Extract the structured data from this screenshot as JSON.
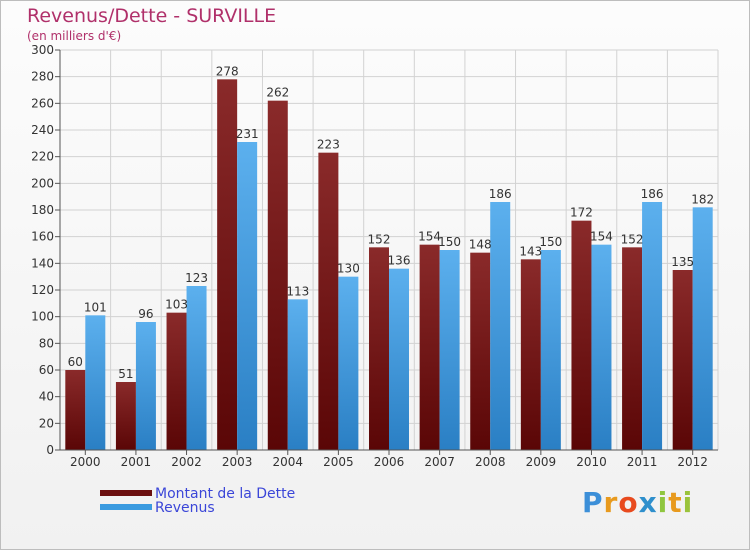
{
  "header": {
    "title": "Revenus/Dette - SURVILLE",
    "subtitle": "(en milliers d'€)"
  },
  "chart_data": {
    "type": "bar",
    "title": "Revenus/Dette - SURVILLE",
    "ylabel": "(en milliers d'€)",
    "xlabel": "",
    "ylim": [
      0,
      300
    ],
    "ytick_step": 20,
    "grid": true,
    "categories": [
      "2000",
      "2001",
      "2002",
      "2003",
      "2004",
      "2005",
      "2006",
      "2007",
      "2008",
      "2009",
      "2010",
      "2011",
      "2012"
    ],
    "series": [
      {
        "name": "Montant de la Dette",
        "color": "#6b1010",
        "values": [
          60,
          51,
          103,
          278,
          262,
          223,
          152,
          154,
          148,
          143,
          172,
          152,
          135
        ]
      },
      {
        "name": "Revenus",
        "color": "#3b9be0",
        "values": [
          101,
          96,
          123,
          231,
          113,
          130,
          136,
          150,
          186,
          150,
          154,
          186,
          182
        ]
      }
    ],
    "legend_position": "bottom-left"
  },
  "legend": {
    "items": [
      {
        "label": "Montant de la Dette",
        "color": "#6b1010"
      },
      {
        "label": "Revenus",
        "color": "#3b9be0"
      }
    ]
  },
  "logo": {
    "letters": [
      {
        "ch": "P",
        "color": "#3c8fd8"
      },
      {
        "ch": "r",
        "color": "#e89a1e"
      },
      {
        "ch": "o",
        "color": "#e84a1e"
      },
      {
        "ch": "x",
        "color": "#2e8fcc"
      },
      {
        "ch": "i",
        "color": "#8fc63f"
      },
      {
        "ch": "t",
        "color": "#e89a1e"
      },
      {
        "ch": "i",
        "color": "#9ac33b"
      }
    ]
  }
}
